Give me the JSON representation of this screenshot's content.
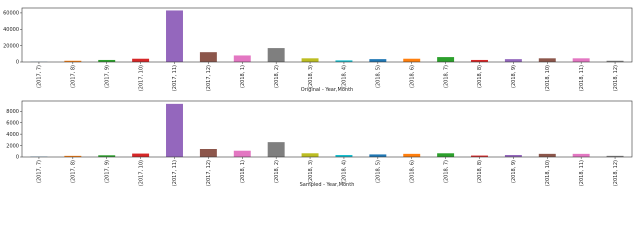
{
  "chart_data": [
    {
      "type": "bar",
      "xlabel": "Original - Year,Month",
      "categories": [
        "(2017, 7)",
        "(2017, 8)",
        "(2017, 9)",
        "(2017, 10)",
        "(2017, 11)",
        "(2017, 12)",
        "(2018, 1)",
        "(2018, 2)",
        "(2018, 3)",
        "(2018, 4)",
        "(2018, 5)",
        "(2018, 6)",
        "(2018, 7)",
        "(2018, 8)",
        "(2018, 9)",
        "(2018, 10)",
        "(2018, 11)",
        "(2018, 12)"
      ],
      "values": [
        200,
        1500,
        2500,
        4000,
        63000,
        12000,
        8000,
        17000,
        4500,
        2000,
        3500,
        4000,
        6000,
        2500,
        3500,
        4500,
        4500,
        1500
      ],
      "colors": [
        "#1f77b4",
        "#ff7f0e",
        "#2ca02c",
        "#d62728",
        "#9467bd",
        "#8c564b",
        "#e377c2",
        "#7f7f7f",
        "#bcbd22",
        "#17becf",
        "#1f77b4",
        "#ff7f0e",
        "#2ca02c",
        "#d62728",
        "#9467bd",
        "#8c564b",
        "#e377c2",
        "#7f7f7f"
      ],
      "ylim": [
        0,
        66000
      ],
      "yticks": [
        0,
        20000,
        40000,
        60000
      ]
    },
    {
      "type": "bar",
      "xlabel": "Sampled - Year,Month",
      "categories": [
        "(2017, 7)",
        "(2017, 8)",
        "(2017, 9)",
        "(2017, 10)",
        "(2017, 11)",
        "(2017, 12)",
        "(2018, 1)",
        "(2018, 2)",
        "(2018, 3)",
        "(2018, 4)",
        "(2018, 5)",
        "(2018, 6)",
        "(2018, 7)",
        "(2018, 8)",
        "(2018, 9)",
        "(2018, 10)",
        "(2018, 11)",
        "(2018, 12)"
      ],
      "values": [
        50,
        200,
        300,
        600,
        9300,
        1400,
        1100,
        2600,
        650,
        350,
        450,
        550,
        650,
        250,
        350,
        550,
        550,
        200
      ],
      "colors": [
        "#1f77b4",
        "#ff7f0e",
        "#2ca02c",
        "#d62728",
        "#9467bd",
        "#8c564b",
        "#e377c2",
        "#7f7f7f",
        "#bcbd22",
        "#17becf",
        "#1f77b4",
        "#ff7f0e",
        "#2ca02c",
        "#d62728",
        "#9467bd",
        "#8c564b",
        "#e377c2",
        "#7f7f7f"
      ],
      "ylim": [
        0,
        9800
      ],
      "yticks": [
        0,
        2000,
        4000,
        6000,
        8000
      ]
    }
  ]
}
